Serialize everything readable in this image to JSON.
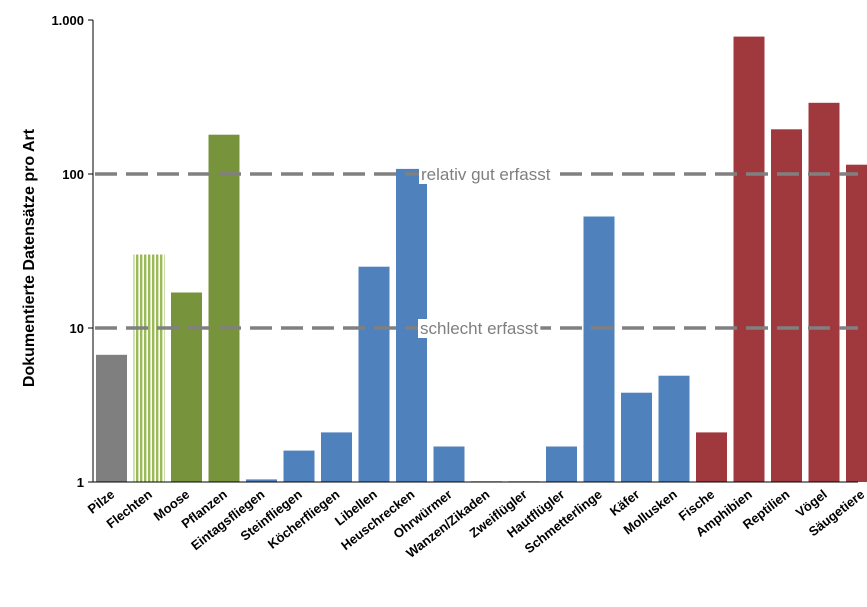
{
  "chart_data": {
    "type": "bar",
    "yscale": "log",
    "ylim": [
      1,
      1000
    ],
    "ylabel": "Dokumentierte Datensätze pro Art",
    "xlabel": "",
    "title": "",
    "yticks": [
      {
        "value": 1,
        "label": "1"
      },
      {
        "value": 10,
        "label": "10"
      },
      {
        "value": 100,
        "label": "100"
      },
      {
        "value": 1000,
        "label": "1.000"
      }
    ],
    "categories": [
      "Pilze",
      "Flechten",
      "Moose",
      "Pflanzen",
      "Eintagsfliegen",
      "Steinfliegen",
      "Köcherfliegen",
      "Libellen",
      "Heuschrecken",
      "Ohrwürmer",
      "Wanzen/Zikaden",
      "Zweiflügler",
      "Hautflügler",
      "Schmetterlinge",
      "Käfer",
      "Mollusken",
      "Fische",
      "Amphibien",
      "Reptilien",
      "Vögel",
      "Säugetiere"
    ],
    "values": [
      6.7,
      30,
      17,
      180,
      1.04,
      1.6,
      2.1,
      25,
      108,
      1.7,
      1.01,
      1.01,
      1.7,
      53,
      3.8,
      4.9,
      2.1,
      780,
      195,
      290,
      115
    ],
    "bar_colors": [
      "#7f7f7f",
      "#9bbb59",
      "#77933c",
      "#77933c",
      "#4f81bd",
      "#4f81bd",
      "#4f81bd",
      "#4f81bd",
      "#4f81bd",
      "#4f81bd",
      "#4f81bd",
      "#4f81bd",
      "#4f81bd",
      "#4f81bd",
      "#4f81bd",
      "#4f81bd",
      "#a0393d",
      "#a0393d",
      "#a0393d",
      "#a0393d",
      "#a0393d"
    ],
    "bar_patterns": [
      "",
      "striped",
      "",
      "",
      "",
      "",
      "",
      "",
      "",
      "",
      "",
      "",
      "",
      "",
      "",
      "",
      "",
      "",
      "",
      "",
      ""
    ],
    "reference_lines": [
      {
        "value": 100,
        "label": "relativ gut erfasst",
        "style": "dashed",
        "color": "#808080"
      },
      {
        "value": 10,
        "label": "schlecht erfasst",
        "style": "dashed",
        "color": "#808080"
      }
    ],
    "grid": false,
    "legend": "none"
  }
}
